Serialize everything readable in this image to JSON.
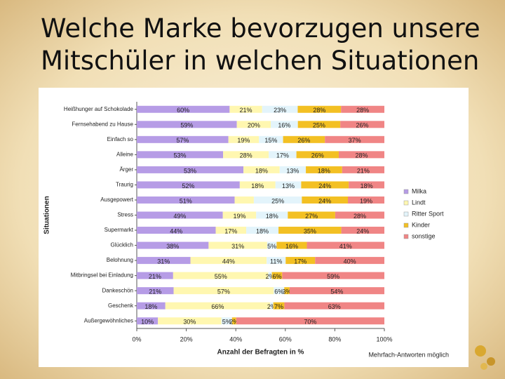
{
  "title_lines": [
    "Welche Marke bevorzugen unsere",
    "Mitschüler in welchen Situationen"
  ],
  "chart_data": {
    "type": "stacked100_barh",
    "y_label": "Situationen",
    "x_label": "Anzahl der Befragten in %",
    "note": "Mehrfach-Antworten möglich",
    "categories": [
      "Heißhunger auf Schokolade",
      "Fernsehabend zu Hause",
      "Einfach so",
      "Alleine",
      "Ärger",
      "Traurig",
      "Ausgepowert",
      "Stress",
      "Supermarkt",
      "Glücklich",
      "Belohnung",
      "Mitbringsel bei Einladung",
      "Dankeschön",
      "Geschenk",
      "Außergewöhnliches"
    ],
    "xlim": [
      0,
      100
    ],
    "xticks": [
      {
        "value": 0,
        "label": "0%"
      },
      {
        "value": 20,
        "label": "20%"
      },
      {
        "value": 40,
        "label": "40%"
      },
      {
        "value": 60,
        "label": "60%"
      },
      {
        "value": 80,
        "label": "80%"
      },
      {
        "value": 100,
        "label": "100%"
      }
    ],
    "series": [
      {
        "name": "Milka",
        "color": "#b69ce6",
        "values": [
          60,
          59,
          57,
          53,
          53,
          52,
          51,
          49,
          44,
          38,
          31,
          21,
          21,
          18,
          10
        ],
        "value_labels": [
          "60%",
          "59%",
          "57%",
          "53%",
          "53%",
          "52%",
          "51%",
          "49%",
          "44%",
          "38%",
          "31%",
          "21%",
          "21%",
          "18%",
          "10%"
        ]
      },
      {
        "name": "Lindt",
        "color": "#fff7b0",
        "values": [
          21,
          20,
          19,
          28,
          18,
          18,
          10,
          19,
          17,
          31,
          44,
          55,
          57,
          66,
          30
        ],
        "value_labels": [
          "21%",
          "20%",
          "19%",
          "28%",
          "18%",
          "18%",
          null,
          "19%",
          "17%",
          "31%",
          "44%",
          "55%",
          "57%",
          "66%",
          "30%"
        ]
      },
      {
        "name": "Ritter Sport",
        "color": "#e3f4fb",
        "values": [
          23,
          16,
          15,
          17,
          13,
          13,
          25,
          18,
          18,
          5,
          11,
          2,
          6,
          2,
          5
        ],
        "value_labels": [
          "23%",
          "16%",
          "15%",
          "17%",
          "13%",
          "13%",
          "25%",
          "18%",
          "18%",
          "5%",
          "11%",
          "2%",
          "6%",
          "2%",
          "5%"
        ]
      },
      {
        "name": "Kinder",
        "color": "#f3c023",
        "values": [
          28,
          25,
          26,
          26,
          18,
          24,
          24,
          27,
          35,
          16,
          17,
          6,
          3,
          7,
          2
        ],
        "value_labels": [
          "28%",
          "25%",
          "26%",
          "26%",
          "18%",
          "24%",
          "24%",
          "27%",
          "35%",
          "16%",
          "17%",
          "6%",
          "3%",
          "7%",
          "2%"
        ]
      },
      {
        "name": "sonstige",
        "color": "#f08585",
        "values": [
          28,
          26,
          37,
          28,
          21,
          18,
          19,
          28,
          24,
          41,
          40,
          59,
          54,
          63,
          70
        ],
        "value_labels": [
          "28%",
          "26%",
          "37%",
          "28%",
          "21%",
          "18%",
          "19%",
          "28%",
          "24%",
          "41%",
          "40%",
          "59%",
          "54%",
          "63%",
          "70%"
        ]
      }
    ]
  }
}
